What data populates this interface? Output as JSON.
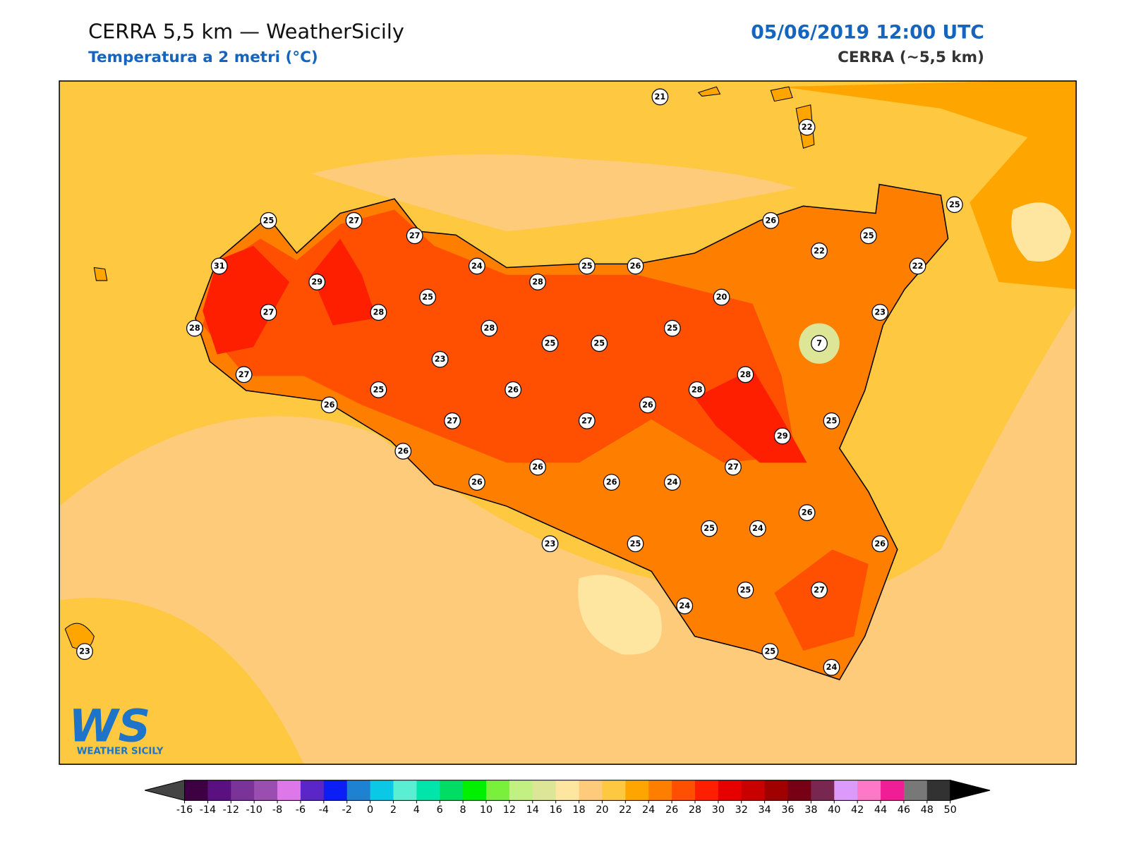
{
  "header": {
    "title": "CERRA 5,5 km — WeatherSicily",
    "subtitle": "Temperatura a 2 metri (°C)",
    "datetime": "05/06/2019 12:00 UTC",
    "model": "CERRA (~5,5 km)"
  },
  "stations": [
    21,
    22,
    25,
    27,
    27,
    26,
    25,
    25,
    22,
    31,
    24,
    25,
    26,
    22,
    29,
    28,
    25,
    20,
    27,
    28,
    23,
    28,
    28,
    25,
    25,
    25,
    7,
    23,
    27,
    28,
    25,
    26,
    28,
    26,
    26,
    27,
    27,
    25,
    29,
    26,
    26,
    27,
    26,
    26,
    24,
    26,
    25,
    24,
    26,
    23,
    25,
    25,
    27,
    24,
    23,
    25,
    24
  ],
  "colorbar": {
    "ticks": [
      -16,
      -14,
      -12,
      -10,
      -8,
      -6,
      -4,
      -2,
      0,
      2,
      4,
      6,
      8,
      10,
      12,
      14,
      16,
      18,
      20,
      22,
      24,
      26,
      28,
      30,
      32,
      34,
      36,
      38,
      40,
      42,
      44,
      46,
      48,
      50
    ],
    "colors": [
      "#3d0043",
      "#5a1080",
      "#7a3399",
      "#9a4fb0",
      "#de78e8",
      "#5a26c8",
      "#0a1ef5",
      "#1e82d2",
      "#0ac8e6",
      "#5aefd2",
      "#00e6aa",
      "#00dc64",
      "#00f000",
      "#78f03c",
      "#c3f082",
      "#dce696",
      "#ffe6a0",
      "#fecb7a",
      "#fec840",
      "#fea500",
      "#fe7f00",
      "#fe5000",
      "#fe1e00",
      "#e60000",
      "#c80000",
      "#a00000",
      "#780014",
      "#782850",
      "#dc9bfa",
      "#fe78c8",
      "#f01e96",
      "#787878",
      "#323232"
    ]
  },
  "logo": {
    "mark": "WS",
    "text": "WEATHER SICILY"
  }
}
